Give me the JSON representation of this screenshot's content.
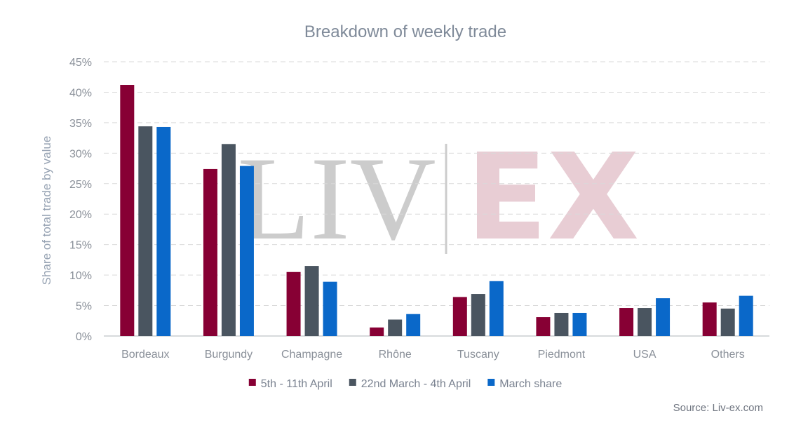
{
  "chart_data": {
    "type": "bar",
    "title": "Breakdown of weekly trade",
    "ylabel": "Share of total trade by value",
    "xlabel": "",
    "ylim": [
      0,
      45
    ],
    "yticks": [
      "0%",
      "5%",
      "10%",
      "15%",
      "20%",
      "25%",
      "30%",
      "35%",
      "40%",
      "45%"
    ],
    "grid": true,
    "legend_position": "bottom",
    "categories": [
      "Bordeaux",
      "Burgundy",
      "Champagne",
      "Rhône",
      "Tuscany",
      "Piedmont",
      "USA",
      "Others"
    ],
    "series": [
      {
        "name": "5th - 11th April",
        "color": "#870034",
        "values": [
          41.2,
          27.4,
          10.5,
          1.4,
          6.4,
          3.1,
          4.6,
          5.5
        ]
      },
      {
        "name": "22nd March - 4th April",
        "color": "#4a5560",
        "values": [
          34.4,
          31.5,
          11.5,
          2.7,
          6.9,
          3.8,
          4.6,
          4.5
        ]
      },
      {
        "name": "March share",
        "color": "#0a68c9",
        "values": [
          34.3,
          27.9,
          8.9,
          3.6,
          9.0,
          3.8,
          6.2,
          6.6
        ]
      }
    ],
    "source": "Source: Liv-ex.com",
    "watermark": {
      "left": "LIV",
      "right": "EX"
    }
  }
}
